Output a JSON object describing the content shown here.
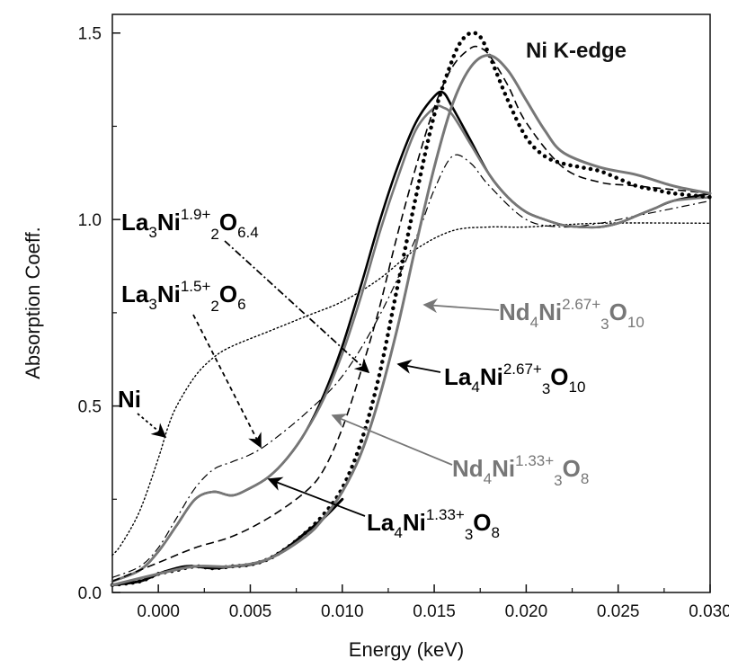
{
  "chart_data": {
    "type": "line",
    "title": "Ni K-edge",
    "xlabel": "Energy (keV)",
    "ylabel": "Absorption Coeff.",
    "xlim": [
      -0.0025,
      0.03
    ],
    "ylim": [
      0.0,
      1.55
    ],
    "xticks": [
      "0.000",
      "0.005",
      "0.010",
      "0.015",
      "0.020",
      "0.025",
      "0.030"
    ],
    "yticks": [
      "0.0",
      "0.5",
      "1.0",
      "1.5"
    ],
    "grid": false,
    "colors": {
      "black": "#000000",
      "gray": "#777777"
    },
    "annotations": [
      {
        "id": "la3ni19",
        "base": "La",
        "sub1": "3",
        "mid": "Ni",
        "sup": "1.9+",
        "sub2": "2",
        "tail": "O",
        "sub3": "6.4",
        "color": "#000000"
      },
      {
        "id": "la3ni15",
        "base": "La",
        "sub1": "3",
        "mid": "Ni",
        "sup": "1.5+",
        "sub2": "2",
        "tail": "O",
        "sub3": "6",
        "color": "#000000"
      },
      {
        "id": "ni",
        "base": "Ni",
        "color": "#000000"
      },
      {
        "id": "nd4ni267",
        "base": "Nd",
        "sub1": "4",
        "mid": "Ni",
        "sup": "2.67+",
        "sub2": "3",
        "tail": "O",
        "sub3": "10",
        "color": "#777777"
      },
      {
        "id": "la4ni267",
        "base": "La",
        "sub1": "4",
        "mid": "Ni",
        "sup": "2.67+",
        "sub2": "3",
        "tail": "O",
        "sub3": "10",
        "color": "#000000"
      },
      {
        "id": "nd4ni133",
        "base": "Nd",
        "sub1": "4",
        "mid": "Ni",
        "sup": "1.33+",
        "sub2": "3",
        "tail": "O",
        "sub3": "8",
        "color": "#777777"
      },
      {
        "id": "la4ni133",
        "base": "La",
        "sub1": "4",
        "mid": "Ni",
        "sup": "1.33+",
        "sub2": "3",
        "tail": "O",
        "sub3": "8",
        "color": "#000000"
      }
    ],
    "series": [
      {
        "style": "dot-thin",
        "color": "#000000",
        "x": [
          -0.0025,
          -0.002,
          -0.001,
          0.0,
          0.0005,
          0.001,
          0.002,
          0.003,
          0.004,
          0.006,
          0.008,
          0.01,
          0.012,
          0.014,
          0.016,
          0.018,
          0.02,
          0.024,
          0.03
        ],
        "y": [
          0.1,
          0.13,
          0.22,
          0.36,
          0.44,
          0.5,
          0.58,
          0.63,
          0.66,
          0.7,
          0.74,
          0.78,
          0.84,
          0.92,
          0.97,
          0.98,
          0.98,
          0.99,
          0.99
        ]
      },
      {
        "style": "dashdot",
        "color": "#000000",
        "x": [
          -0.0025,
          -0.001,
          0.0,
          0.001,
          0.002,
          0.003,
          0.004,
          0.005,
          0.006,
          0.008,
          0.01,
          0.012,
          0.014,
          0.015,
          0.016,
          0.017,
          0.018,
          0.02,
          0.022,
          0.024,
          0.026,
          0.03
        ],
        "y": [
          0.04,
          0.07,
          0.12,
          0.2,
          0.28,
          0.33,
          0.35,
          0.37,
          0.4,
          0.48,
          0.58,
          0.74,
          0.95,
          1.08,
          1.17,
          1.15,
          1.09,
          1.0,
          0.98,
          0.99,
          1.01,
          1.05
        ]
      },
      {
        "style": "solid-black",
        "color": "#000000",
        "x": [
          -0.0025,
          -0.001,
          0.0,
          0.001,
          0.002,
          0.003,
          0.004,
          0.005,
          0.006,
          0.007,
          0.008,
          0.009,
          0.01,
          0.011,
          0.012,
          0.013,
          0.014,
          0.015,
          0.0155,
          0.016,
          0.017,
          0.018,
          0.019,
          0.02,
          0.021,
          0.022,
          0.023,
          0.024,
          0.025,
          0.026,
          0.027,
          0.028,
          0.03
        ],
        "y": [
          0.03,
          0.06,
          0.11,
          0.18,
          0.25,
          0.27,
          0.26,
          0.28,
          0.31,
          0.36,
          0.43,
          0.53,
          0.66,
          0.82,
          0.99,
          1.14,
          1.26,
          1.33,
          1.34,
          1.3,
          1.21,
          1.12,
          1.06,
          1.02,
          1.0,
          0.985,
          0.98,
          0.98,
          0.99,
          1.01,
          1.03,
          1.05,
          1.07
        ]
      },
      {
        "style": "solid-gray",
        "color": "#777777",
        "x": [
          -0.0025,
          -0.001,
          0.0,
          0.001,
          0.002,
          0.003,
          0.004,
          0.005,
          0.006,
          0.007,
          0.008,
          0.009,
          0.01,
          0.011,
          0.012,
          0.013,
          0.014,
          0.015,
          0.0155,
          0.016,
          0.017,
          0.018,
          0.019,
          0.02,
          0.021,
          0.022,
          0.023,
          0.024,
          0.025,
          0.026,
          0.027,
          0.028,
          0.03
        ],
        "y": [
          0.03,
          0.06,
          0.11,
          0.18,
          0.25,
          0.27,
          0.26,
          0.28,
          0.31,
          0.36,
          0.43,
          0.52,
          0.64,
          0.79,
          0.96,
          1.11,
          1.24,
          1.3,
          1.3,
          1.28,
          1.2,
          1.12,
          1.06,
          1.02,
          1.0,
          0.985,
          0.98,
          0.98,
          0.99,
          1.01,
          1.03,
          1.05,
          1.06
        ]
      },
      {
        "style": "dashed",
        "color": "#000000",
        "x": [
          -0.0025,
          0.0,
          0.002,
          0.004,
          0.006,
          0.008,
          0.009,
          0.01,
          0.011,
          0.012,
          0.013,
          0.014,
          0.015,
          0.016,
          0.017,
          0.0175,
          0.018,
          0.019,
          0.02,
          0.022,
          0.024,
          0.026,
          0.03
        ],
        "y": [
          0.03,
          0.08,
          0.12,
          0.15,
          0.2,
          0.27,
          0.33,
          0.44,
          0.59,
          0.76,
          0.96,
          1.14,
          1.3,
          1.41,
          1.46,
          1.46,
          1.44,
          1.36,
          1.26,
          1.14,
          1.1,
          1.09,
          1.07
        ]
      },
      {
        "style": "dot-thick",
        "color": "#000000",
        "x": [
          -0.0025,
          -0.001,
          0.0,
          0.001,
          0.002,
          0.003,
          0.004,
          0.005,
          0.006,
          0.007,
          0.008,
          0.009,
          0.01,
          0.011,
          0.012,
          0.013,
          0.014,
          0.015,
          0.016,
          0.0165,
          0.017,
          0.0175,
          0.018,
          0.019,
          0.02,
          0.021,
          0.022,
          0.023,
          0.024,
          0.025,
          0.026,
          0.027,
          0.028,
          0.03
        ],
        "y": [
          0.02,
          0.03,
          0.05,
          0.06,
          0.07,
          0.065,
          0.07,
          0.075,
          0.09,
          0.12,
          0.16,
          0.21,
          0.28,
          0.4,
          0.58,
          0.82,
          1.06,
          1.28,
          1.43,
          1.48,
          1.5,
          1.49,
          1.44,
          1.32,
          1.22,
          1.17,
          1.15,
          1.14,
          1.13,
          1.11,
          1.09,
          1.08,
          1.07,
          1.06
        ]
      },
      {
        "style": "solid-black-lower",
        "color": "#000000",
        "x": [
          -0.0025,
          -0.001,
          0.0,
          0.001,
          0.0015,
          0.002,
          0.003,
          0.004,
          0.005,
          0.006,
          0.007,
          0.008,
          0.009,
          0.01
        ],
        "y": [
          0.02,
          0.03,
          0.05,
          0.065,
          0.07,
          0.07,
          0.065,
          0.07,
          0.075,
          0.09,
          0.12,
          0.16,
          0.2,
          0.25
        ]
      },
      {
        "style": "solid-gray-lower",
        "color": "#777777",
        "x": [
          -0.0025,
          0.0,
          0.002,
          0.004,
          0.006,
          0.008,
          0.009,
          0.01,
          0.011,
          0.012,
          0.013,
          0.014,
          0.015,
          0.016,
          0.017,
          0.018,
          0.019,
          0.02,
          0.021,
          0.022,
          0.024,
          0.026,
          0.028,
          0.03
        ],
        "y": [
          0.02,
          0.05,
          0.07,
          0.07,
          0.09,
          0.15,
          0.2,
          0.27,
          0.37,
          0.52,
          0.71,
          0.93,
          1.14,
          1.31,
          1.41,
          1.44,
          1.4,
          1.32,
          1.24,
          1.18,
          1.14,
          1.12,
          1.09,
          1.07
        ]
      }
    ]
  }
}
